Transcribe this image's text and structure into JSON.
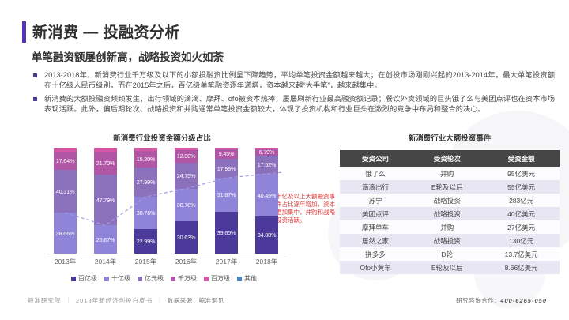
{
  "header": {
    "title": "新消费 — 投融资分析",
    "subtitle": "单笔融资额屡创新高，战略投资如火如荼",
    "accent_color": "#5633bf"
  },
  "bullets": [
    "2013-2018年，新消费行业千万级及以下的小额投融资比例呈下降趋势，平均单笔投资金额越来越大；在创投市场刚刚兴起的2013-2014年，最大单笔投资额在十亿级人民币级别，而在2015年之后，百亿级单笔融资逐年递增，资本越来越“大手笔”，越来越集中。",
    "新消费的大额投融资频频发生，出行领域的滴滴、摩拜、ofo被资本热捧，屡屡刷新行业最高融资额记录；餐饮外卖领域的巨头饿了么与美团点评也在资本市场表现活跃。此外，偏后期轮次、战略投资和并购通常单笔投资金额较大，体现了投资机构和行业巨头在激烈的竞争中布局和整合的决心。"
  ],
  "chart_data": {
    "type": "bar",
    "stacked": true,
    "title": "新消费行业投资金额分级占比",
    "categories": [
      "2013年",
      "2014年",
      "2015年",
      "2016年",
      "2017年",
      "2018年"
    ],
    "series": [
      {
        "name": "百亿级",
        "color": "#4b3a99",
        "values": [
          0,
          0,
          22.99,
          30.63,
          39.65,
          34.88
        ]
      },
      {
        "name": "十亿级",
        "color": "#9084d8",
        "values": [
          38.66,
          26.67,
          30.76,
          30.78,
          31.87,
          40.45
        ]
      },
      {
        "name": "亿元级",
        "color": "#8b70bc",
        "values": [
          40.31,
          47.79,
          27.99,
          24.75,
          17.99,
          17.52
        ]
      },
      {
        "name": "千万级",
        "color": "#b056a4",
        "values": [
          17.64,
          21.7,
          15.2,
          12.0,
          9.45,
          6.79
        ]
      },
      {
        "name": "百万级",
        "color": "#d655a4",
        "values": [
          3.39,
          3.84,
          3.06,
          1.84,
          1.04,
          0.36
        ]
      },
      {
        "name": "其他",
        "color": "#4a85c6",
        "values": [
          0,
          0,
          0,
          0,
          0,
          0
        ]
      }
    ],
    "trend_line": {
      "values": [
        38.66,
        26.67,
        53.75,
        61.41,
        71.52,
        75.33
      ],
      "color": "#a79de2",
      "style": "dashed"
    },
    "annotation": {
      "text": "十亿及以上大额融资事件占比逐年增加，资本更加集中，并购和战略投资活跃。",
      "color": "#e03a3a"
    },
    "ylim": [
      0,
      100
    ],
    "value_suffix": "%",
    "legend_position": "bottom"
  },
  "table": {
    "title": "新消费行业大额投资事件",
    "headers": [
      "受资公司",
      "受资轮次",
      "受资金额"
    ],
    "rows": [
      [
        "饿了么",
        "并购",
        "95亿美元"
      ],
      [
        "滴滴出行",
        "E轮及以后",
        "55亿美元"
      ],
      [
        "苏宁",
        "战略投资",
        "283亿元"
      ],
      [
        "美团点评",
        "战略投资",
        "40亿美元"
      ],
      [
        "摩拜单车",
        "并购",
        "27亿美元"
      ],
      [
        "居然之家",
        "战略投资",
        "130亿元"
      ],
      [
        "拼多多",
        "D轮",
        "13.7亿美元"
      ],
      [
        "Ofo小黄车",
        "E轮及以后",
        "8.66亿美元"
      ]
    ]
  },
  "footer": {
    "brand": "鲸准研究院",
    "doc": "2018年新经济创投白皮书",
    "source": "数据来源：鲸准洞见",
    "contact_label": "研究咨询合作：",
    "phone": "400-6265-050"
  }
}
